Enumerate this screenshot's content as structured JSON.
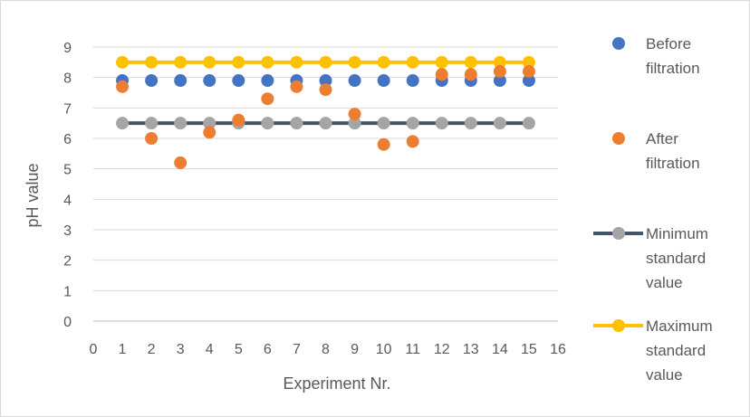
{
  "chart_data": {
    "type": "scatter",
    "title": "",
    "xlabel": "Experiment Nr.",
    "ylabel": "pH value",
    "xlim": [
      0,
      16
    ],
    "ylim": [
      0,
      9
    ],
    "xticks": [
      "0",
      "1",
      "2",
      "3",
      "4",
      "5",
      "6",
      "7",
      "8",
      "9",
      "10",
      "11",
      "12",
      "13",
      "14",
      "15",
      "16"
    ],
    "yticks": [
      "0",
      "1",
      "2",
      "3",
      "4",
      "5",
      "6",
      "7",
      "8",
      "9"
    ],
    "grid": "horizontal",
    "legend_position": "right",
    "x": [
      1,
      2,
      3,
      4,
      5,
      6,
      7,
      8,
      9,
      10,
      11,
      12,
      13,
      14,
      15
    ],
    "series": [
      {
        "key": "before",
        "name": "Before filtration",
        "legend_lines": [
          "Before",
          "filtration"
        ],
        "style": "markers",
        "color": "#4472C4",
        "values": [
          7.9,
          7.9,
          7.9,
          7.9,
          7.9,
          7.9,
          7.9,
          7.9,
          7.9,
          7.9,
          7.9,
          7.9,
          7.9,
          7.9,
          7.9
        ]
      },
      {
        "key": "after",
        "name": "After filtration",
        "legend_lines": [
          "After",
          "filtration"
        ],
        "style": "markers",
        "color": "#ED7D31",
        "values": [
          7.7,
          6.0,
          5.2,
          6.2,
          6.6,
          7.3,
          7.7,
          7.6,
          6.8,
          5.8,
          5.9,
          8.1,
          8.1,
          8.2,
          8.2
        ]
      },
      {
        "key": "min",
        "name": "Minimum standard value",
        "legend_lines": [
          "Minimum",
          "standard",
          "value"
        ],
        "style": "line-markers",
        "color": "#A5A5A5",
        "line_color": "#44546A",
        "values": [
          6.5,
          6.5,
          6.5,
          6.5,
          6.5,
          6.5,
          6.5,
          6.5,
          6.5,
          6.5,
          6.5,
          6.5,
          6.5,
          6.5,
          6.5
        ]
      },
      {
        "key": "max",
        "name": "Maximum standard value",
        "legend_lines": [
          "Maximum",
          "standard",
          "value"
        ],
        "style": "line-markers",
        "color": "#FFC000",
        "line_color": "#FFC000",
        "values": [
          8.5,
          8.5,
          8.5,
          8.5,
          8.5,
          8.5,
          8.5,
          8.5,
          8.5,
          8.5,
          8.5,
          8.5,
          8.5,
          8.5,
          8.5
        ]
      }
    ]
  }
}
